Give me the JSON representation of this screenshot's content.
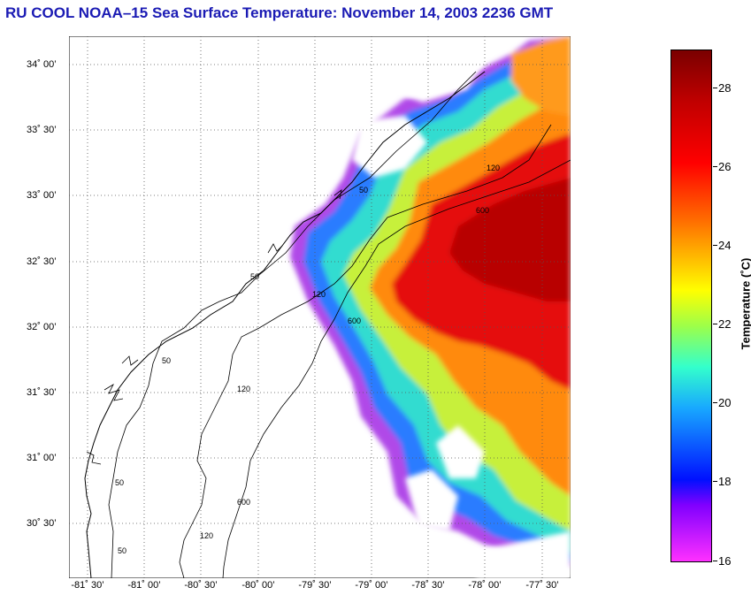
{
  "title": "RU COOL  NOAA–15  Sea Surface Temperature:  November 14, 2003 2236 GMT",
  "map": {
    "lat_labels": [
      "34˚ 00’",
      "33˚ 30’",
      "33˚ 00’",
      "32˚ 30’",
      "32˚ 00’",
      "31˚ 30’",
      "31˚ 00’",
      "30˚ 30’"
    ],
    "lon_labels": [
      "-81˚ 30’",
      "-81˚ 00’",
      "-80˚ 30’",
      "-80˚ 00’",
      "-79˚ 30’",
      "-79˚ 00’",
      "-78˚ 30’",
      "-78˚ 00’",
      "-77˚ 30’"
    ],
    "contour_labels": [
      "50",
      "120",
      "600",
      "50",
      "120",
      "600",
      "50",
      "120",
      "600",
      "50",
      "120",
      "50"
    ]
  },
  "colorbar": {
    "label": "Temperature (˚C)",
    "min": 16,
    "max": 29,
    "ticks": [
      "28",
      "26",
      "24",
      "22",
      "20",
      "18",
      "16"
    ]
  }
}
